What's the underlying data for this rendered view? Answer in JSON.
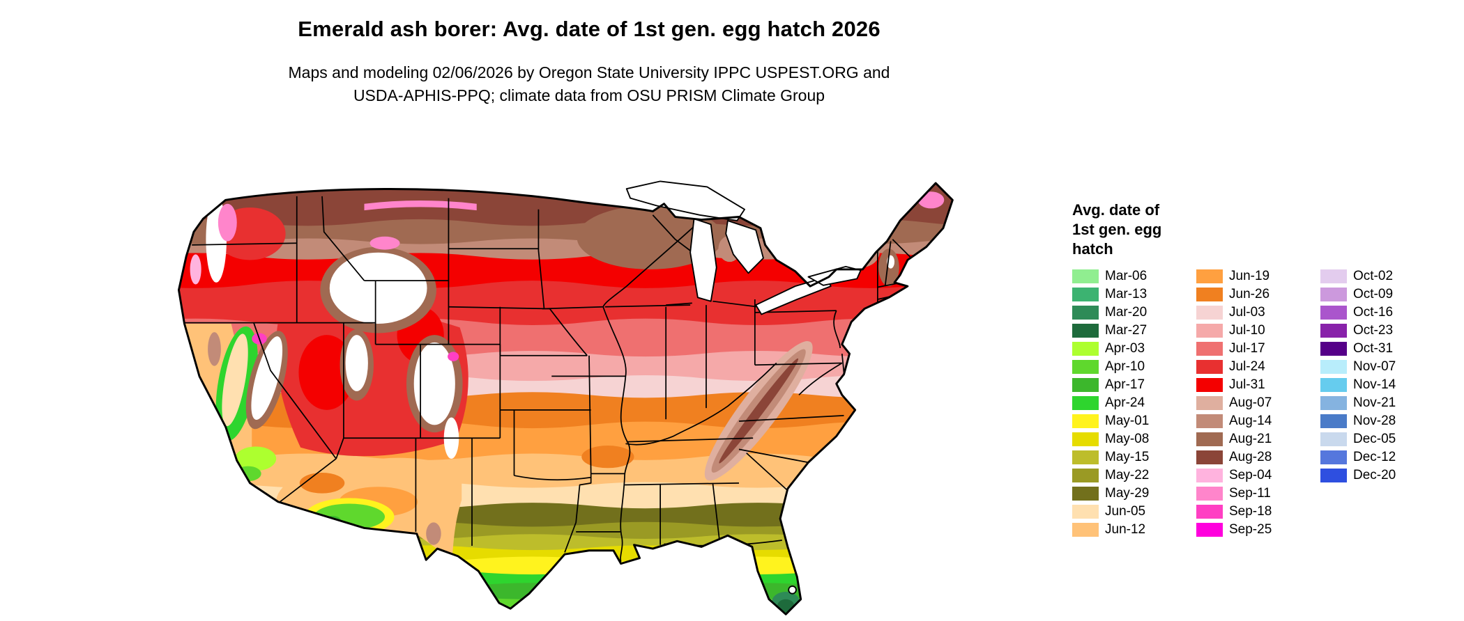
{
  "header": {
    "title": "Emerald ash borer: Avg. date of 1st gen. egg hatch 2026",
    "subtitle_line1": "Maps and modeling 02/06/2026 by Oregon State University IPPC USPEST.ORG and",
    "subtitle_line2": "USDA-APHIS-PPQ; climate data from OSU PRISM Climate Group"
  },
  "legend": {
    "title_lines": [
      "Avg. date of",
      "1st gen. egg",
      "hatch"
    ],
    "columns": [
      [
        {
          "label": "Mar-06",
          "color": "#90EE90"
        },
        {
          "label": "Mar-13",
          "color": "#3CB371"
        },
        {
          "label": "Mar-20",
          "color": "#2E8B57"
        },
        {
          "label": "Mar-27",
          "color": "#1E6B3C"
        },
        {
          "label": "Apr-03",
          "color": "#ADFF2F"
        },
        {
          "label": "Apr-10",
          "color": "#5FD82D"
        },
        {
          "label": "Apr-17",
          "color": "#3CB72C"
        },
        {
          "label": "Apr-24",
          "color": "#2ED52E"
        },
        {
          "label": "May-01",
          "color": "#FFF31E"
        },
        {
          "label": "May-08",
          "color": "#E6DC00"
        },
        {
          "label": "May-15",
          "color": "#BDBD2B"
        },
        {
          "label": "May-22",
          "color": "#9A9A24"
        },
        {
          "label": "May-29",
          "color": "#72701C"
        },
        {
          "label": "Jun-05",
          "color": "#FFE0B0"
        },
        {
          "label": "Jun-12",
          "color": "#FFC278"
        }
      ],
      [
        {
          "label": "Jun-19",
          "color": "#FFA040"
        },
        {
          "label": "Jun-26",
          "color": "#F08020"
        },
        {
          "label": "Jul-03",
          "color": "#F6D3D3"
        },
        {
          "label": "Jul-10",
          "color": "#F5A9A9"
        },
        {
          "label": "Jul-17",
          "color": "#EF7070"
        },
        {
          "label": "Jul-24",
          "color": "#E83030"
        },
        {
          "label": "Jul-31",
          "color": "#F40000"
        },
        {
          "label": "Aug-07",
          "color": "#DFAF9F"
        },
        {
          "label": "Aug-14",
          "color": "#C28B78"
        },
        {
          "label": "Aug-21",
          "color": "#A06A52"
        },
        {
          "label": "Aug-28",
          "color": "#8B4538"
        },
        {
          "label": "Sep-04",
          "color": "#FFB3DE"
        },
        {
          "label": "Sep-11",
          "color": "#FF85CB"
        },
        {
          "label": "Sep-18",
          "color": "#FF3FC3"
        },
        {
          "label": "Sep-25",
          "color": "#FF00DD"
        }
      ],
      [
        {
          "label": "Oct-02",
          "color": "#E3CCEE"
        },
        {
          "label": "Oct-09",
          "color": "#CC99DD"
        },
        {
          "label": "Oct-16",
          "color": "#AA55CC"
        },
        {
          "label": "Oct-23",
          "color": "#8822AA"
        },
        {
          "label": "Oct-31",
          "color": "#550088"
        },
        {
          "label": "Nov-07",
          "color": "#B8EDFB"
        },
        {
          "label": "Nov-14",
          "color": "#66CCEE"
        },
        {
          "label": "Nov-21",
          "color": "#85B3E0"
        },
        {
          "label": "Nov-28",
          "color": "#4A7BC8"
        },
        {
          "label": "Dec-05",
          "color": "#C9D9ED"
        },
        {
          "label": "Dec-12",
          "color": "#5577DD"
        },
        {
          "label": "Dec-20",
          "color": "#2E4FE0"
        }
      ]
    ]
  },
  "map": {
    "no_data_color": "#FFFFFF",
    "border_color": "#000000",
    "background_color": "#FFFFFF"
  }
}
